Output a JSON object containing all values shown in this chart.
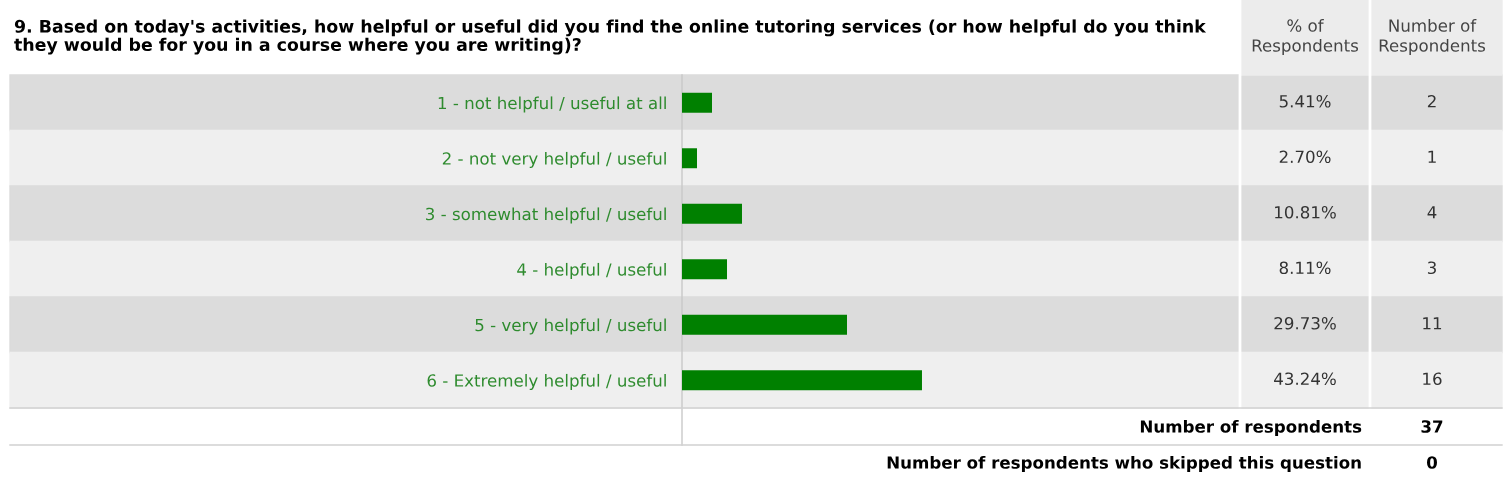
{
  "chart_data": {
    "type": "bar",
    "orientation": "horizontal",
    "title": "9. Based on today's activities, how helpful or useful did you find the online tutoring services (or how helpful do you think they would be for you in a course where you are writing)?",
    "categories": [
      "1 - not helpful / useful at all",
      "2 - not very helpful / useful",
      "3 - somewhat helpful / useful",
      "4 - helpful / useful",
      "5 - very helpful / useful",
      "6 - Extremely helpful / useful"
    ],
    "values": [
      5.41,
      2.7,
      10.81,
      8.11,
      29.73,
      43.24
    ],
    "value_labels": [
      "5.41%",
      "2.70%",
      "10.81%",
      "8.11%",
      "29.73%",
      "43.24%"
    ],
    "color": "#008000",
    "xlim": [
      0,
      100
    ],
    "tick_labels": false,
    "grid": false,
    "legend": false,
    "annotations": [
      "% of\nRespondents",
      "Number of\nRespondents",
      "2",
      "1",
      "4",
      "3",
      "11",
      "16",
      "Number of respondents",
      "37",
      "Number of respondents who skipped this question",
      "0"
    ]
  }
}
